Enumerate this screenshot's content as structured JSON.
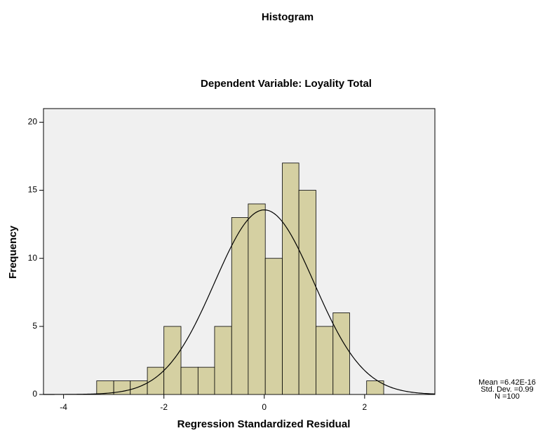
{
  "chart_data": {
    "type": "histogram",
    "title": "Histogram",
    "subtitle": "Dependent Variable: Loyality Total",
    "x_label": "Regression Standardized Residual",
    "y_label": "Frequency",
    "bins": [
      -3.34,
      -3.0,
      -2.67,
      -2.33,
      -2.0,
      -1.66,
      -1.32,
      -0.99,
      -0.65,
      -0.32,
      0.02,
      0.36,
      0.69,
      1.03,
      1.37,
      1.7,
      2.04,
      2.38
    ],
    "counts": [
      1,
      1,
      1,
      2,
      5,
      2,
      2,
      5,
      13,
      14,
      10,
      17,
      15,
      5,
      6,
      0,
      1
    ],
    "color": "#d5d0a2",
    "xlim": [
      -4.4,
      3.4
    ],
    "ylim": [
      0,
      21
    ],
    "xticks": [
      -4,
      -2,
      0,
      2
    ],
    "yticks": [
      0,
      5,
      10,
      15,
      20
    ],
    "stats": [
      {
        "value": 6.42e-16,
        "label": "Mean =6.42E-16"
      },
      {
        "value": 0.99,
        "label": "Std. Dev. =0.99"
      },
      {
        "value": 100,
        "label": "N =100"
      }
    ]
  }
}
